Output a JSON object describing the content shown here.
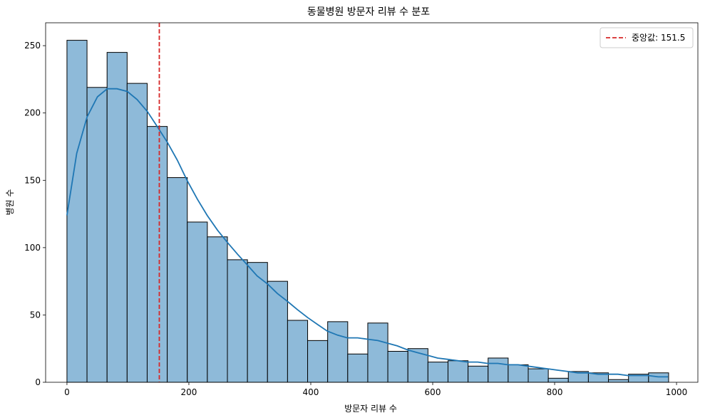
{
  "chart_data": {
    "type": "bar",
    "subtype": "histogram",
    "title": "동물병원 방문자 리뷰 수 분포",
    "xlabel": "방문자 리뷰 수",
    "ylabel": "병원 수",
    "xlim": [
      -35,
      1035
    ],
    "ylim": [
      0,
      267
    ],
    "xticks": [
      0,
      200,
      400,
      600,
      800,
      1000
    ],
    "yticks": [
      0,
      50,
      100,
      150,
      200,
      250
    ],
    "bin_start": 0,
    "bin_width": 32.9,
    "values": [
      254,
      219,
      245,
      222,
      190,
      152,
      119,
      108,
      91,
      89,
      75,
      46,
      31,
      45,
      21,
      44,
      23,
      25,
      15,
      16,
      12,
      18,
      13,
      10,
      3,
      8,
      7,
      2,
      6,
      7
    ],
    "bar_fill": "#8ebad9",
    "bar_edge": "#000000",
    "kde": {
      "color": "#1f77b4",
      "x": [
        0,
        16,
        33,
        50,
        66,
        82,
        99,
        115,
        132,
        148,
        165,
        181,
        197,
        214,
        230,
        247,
        263,
        280,
        296,
        312,
        329,
        345,
        362,
        378,
        395,
        411,
        427,
        444,
        460,
        477,
        493,
        510,
        526,
        542,
        559,
        575,
        592,
        608,
        625,
        641,
        657,
        674,
        690,
        707,
        723,
        740,
        756,
        772,
        789,
        805,
        822,
        838,
        855,
        871,
        887,
        904,
        920,
        937,
        953,
        970,
        986
      ],
      "y": [
        124,
        170,
        197,
        212,
        218,
        218,
        216,
        210,
        201,
        190,
        178,
        165,
        150,
        136,
        124,
        113,
        104,
        95,
        87,
        79,
        73,
        66,
        60,
        54,
        48,
        43,
        38,
        35,
        33,
        33,
        32,
        31,
        29,
        27,
        24,
        22,
        20,
        18,
        17,
        16,
        15,
        15,
        14,
        14,
        13,
        13,
        12,
        11,
        10,
        9,
        8,
        7,
        7,
        6,
        6,
        6,
        5,
        5,
        5,
        4,
        4
      ]
    },
    "median": {
      "value": 151.5,
      "color": "#d62728",
      "label": "중앙값: 151.5"
    },
    "legend": {
      "placement": "top-right"
    },
    "grid": false
  }
}
